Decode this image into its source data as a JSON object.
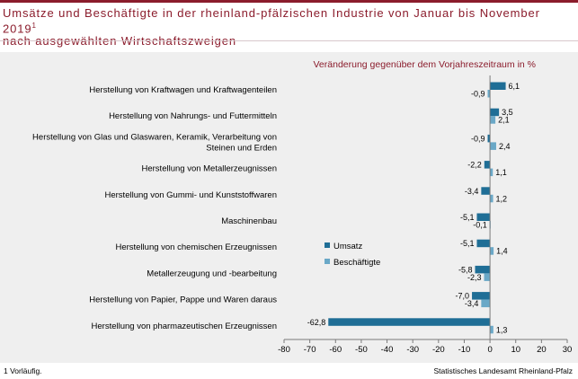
{
  "header": {
    "title_line1": "Umsätze und Beschäftigte in der rheinland-pfälzischen Industrie von Januar bis November 2019",
    "title_sup": "1",
    "title_line2": "nach ausgewählten Wirtschaftszweigen"
  },
  "footnote": "1 Vorläufig.",
  "source": "Statistisches Landesamt Rheinland-Pfalz",
  "colors": {
    "brand": "#8b1c2c",
    "umsatz": "#1f6e96",
    "beschaeftigte": "#6aa8c7",
    "panel": "#efefef"
  },
  "chart_data": {
    "type": "bar",
    "orientation": "horizontal",
    "subtitle": "Veränderung gegenüber dem Vorjahreszeitraum in %",
    "categories": [
      [
        "Herstellung von Kraftwagen und Kraftwagenteilen"
      ],
      [
        "Herstellung von Nahrungs- und Futtermitteln"
      ],
      [
        "Herstellung von Glas und Glaswaren, Keramik, Verarbeitung von",
        "Steinen und Erden"
      ],
      [
        "Herstellung von Metallerzeugnissen"
      ],
      [
        "Herstellung von Gummi- und Kunststoffwaren"
      ],
      [
        "Maschinenbau"
      ],
      [
        "Herstellung von chemischen Erzeugnissen"
      ],
      [
        "Metallerzeugung und -bearbeitung"
      ],
      [
        "Herstellung von Papier, Pappe und Waren daraus"
      ],
      [
        "Herstellung von pharmazeutischen Erzeugnissen"
      ]
    ],
    "series": [
      {
        "name": "Umsatz",
        "values": [
          6.1,
          3.5,
          -0.9,
          -2.2,
          -3.4,
          -5.1,
          -5.1,
          -5.8,
          -7.0,
          -62.8
        ],
        "labels": [
          "6,1",
          "3,5",
          "-0,9",
          "-2,2",
          "-3,4",
          "-5,1",
          "-5,1",
          "-5,8",
          "-7,0",
          "-62,8"
        ]
      },
      {
        "name": "Beschäftigte",
        "values": [
          -0.9,
          2.1,
          2.4,
          1.1,
          1.2,
          -0.1,
          1.4,
          -2.3,
          -3.4,
          1.3
        ],
        "labels": [
          "-0,9",
          "2,1",
          "2,4",
          "1,1",
          "1,2",
          "-0,1",
          "1,4",
          "-2,3",
          "-3,4",
          "1,3"
        ]
      }
    ],
    "xlim": [
      -80,
      30
    ],
    "xticks": [
      -80,
      -70,
      -60,
      -50,
      -40,
      -30,
      -20,
      -10,
      0,
      10,
      20,
      30
    ],
    "legend_position": "right-center",
    "grid": false
  }
}
